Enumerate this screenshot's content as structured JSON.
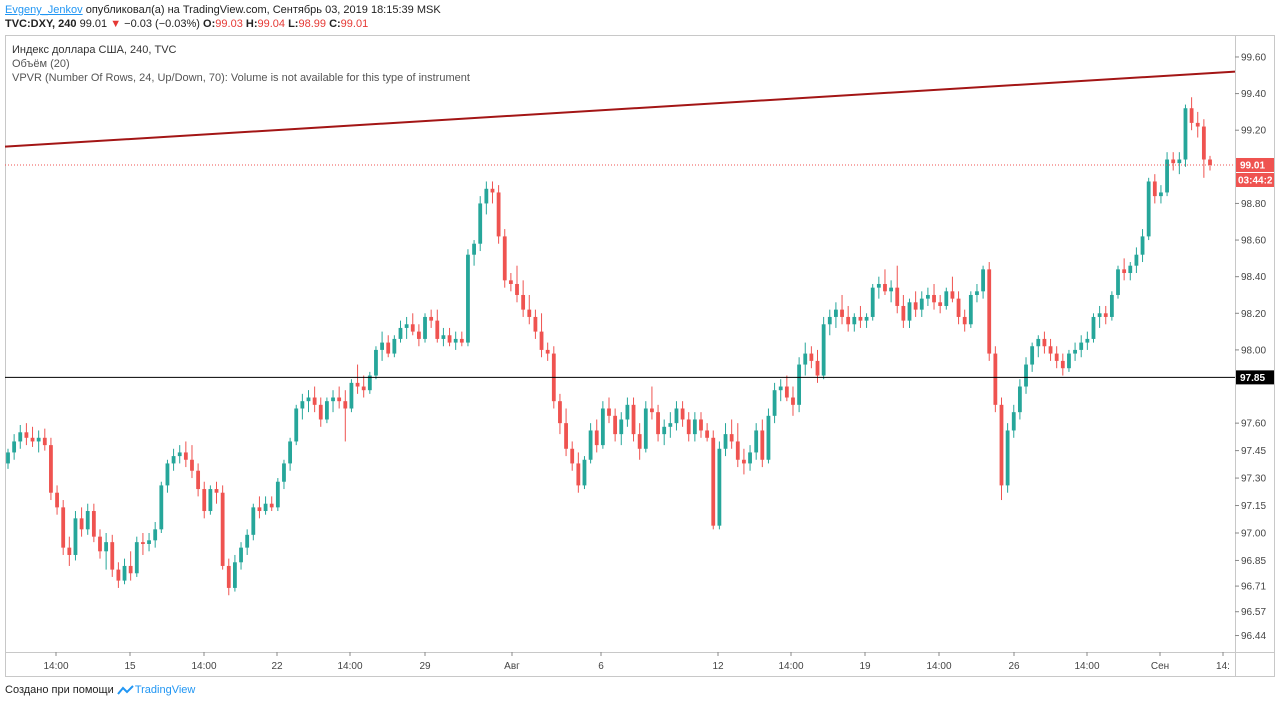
{
  "header": {
    "author": "Evgeny_Jenkov",
    "published_text": "опубликовал(a) на TradingView.com, Сентябрь 03, 2019 18:15:39 MSK",
    "symbol": "TVC:DXY, 240",
    "last": "99.01",
    "change_arrow": "▼",
    "change": "−0.03 (−0.03%)",
    "o_label": "O:",
    "o": "99.03",
    "h_label": "H:",
    "h": "99.04",
    "l_label": "L:",
    "l": "98.99",
    "c_label": "C:",
    "c": "99.01"
  },
  "legend": {
    "title": "Индекс доллара США, 240, TVC",
    "volume": "Объём (20)",
    "vpvr": "VPVR (Number Of Rows, 24, Up/Down, 70): Volume is not available for this type of instrument"
  },
  "footer": {
    "created_with": "Создано при помощи",
    "brand": "TradingView"
  },
  "colors": {
    "up": "#26a69a",
    "down": "#ef5350",
    "trendline": "#a31515",
    "hline": "#000000",
    "price_badge": "#ef5350",
    "hline_badge": "#000000"
  },
  "chart_data": {
    "type": "candlestick",
    "title": "Индекс доллара США, 240, TVC",
    "ylim": [
      96.35,
      99.72
    ],
    "y_ticks": [
      "99.60",
      "99.40",
      "99.20",
      "99.01",
      "98.80",
      "98.60",
      "98.40",
      "98.20",
      "98.00",
      "97.85",
      "97.60",
      "97.45",
      "97.30",
      "97.15",
      "97.00",
      "96.85",
      "96.71",
      "96.57",
      "96.44"
    ],
    "x_ticks": [
      "14:00",
      "15",
      "14:00",
      "22",
      "14:00",
      "29",
      "Авг",
      "6",
      "12",
      "14:00",
      "19",
      "14:00",
      "26",
      "14:00",
      "Сен",
      "14:"
    ],
    "last_price": "99.01",
    "countdown": "03:44:2",
    "horizontal_line": {
      "price": 97.85,
      "label": "97.85"
    },
    "trendline": {
      "from_price": 99.11,
      "to_price": 99.52
    },
    "ohlc": [
      [
        97.38,
        97.46,
        97.35,
        97.44
      ],
      [
        97.44,
        97.54,
        97.4,
        97.5
      ],
      [
        97.5,
        97.59,
        97.46,
        97.55
      ],
      [
        97.55,
        97.6,
        97.48,
        97.52
      ],
      [
        97.52,
        97.58,
        97.47,
        97.5
      ],
      [
        97.5,
        97.56,
        97.44,
        97.52
      ],
      [
        97.52,
        97.57,
        97.45,
        97.48
      ],
      [
        97.48,
        97.52,
        97.18,
        97.22
      ],
      [
        97.22,
        97.26,
        97.1,
        97.14
      ],
      [
        97.14,
        97.18,
        96.88,
        96.92
      ],
      [
        96.92,
        96.98,
        96.82,
        96.88
      ],
      [
        96.88,
        97.12,
        96.85,
        97.08
      ],
      [
        97.08,
        97.14,
        96.98,
        97.02
      ],
      [
        97.02,
        97.16,
        96.99,
        97.12
      ],
      [
        97.12,
        97.16,
        96.95,
        96.98
      ],
      [
        96.98,
        97.02,
        96.86,
        96.9
      ],
      [
        96.9,
        97.0,
        96.8,
        96.95
      ],
      [
        96.95,
        96.99,
        96.76,
        96.8
      ],
      [
        96.8,
        96.84,
        96.7,
        96.74
      ],
      [
        96.74,
        96.86,
        96.72,
        96.82
      ],
      [
        96.82,
        96.9,
        96.74,
        96.78
      ],
      [
        96.78,
        96.98,
        96.76,
        96.95
      ],
      [
        96.95,
        97.0,
        96.88,
        96.94
      ],
      [
        96.94,
        97.0,
        96.9,
        96.96
      ],
      [
        96.96,
        97.06,
        96.92,
        97.02
      ],
      [
        97.02,
        97.28,
        97.0,
        97.26
      ],
      [
        97.26,
        97.4,
        97.22,
        97.38
      ],
      [
        97.38,
        97.46,
        97.34,
        97.42
      ],
      [
        97.42,
        97.48,
        97.38,
        97.44
      ],
      [
        97.44,
        97.5,
        97.36,
        97.4
      ],
      [
        97.4,
        97.48,
        97.3,
        97.34
      ],
      [
        97.34,
        97.38,
        97.2,
        97.24
      ],
      [
        97.24,
        97.28,
        97.08,
        97.12
      ],
      [
        97.12,
        97.26,
        97.1,
        97.24
      ],
      [
        97.24,
        97.28,
        97.16,
        97.22
      ],
      [
        97.22,
        97.26,
        96.8,
        96.82
      ],
      [
        96.82,
        96.86,
        96.66,
        96.7
      ],
      [
        96.7,
        96.88,
        96.68,
        96.84
      ],
      [
        96.84,
        96.95,
        96.8,
        96.92
      ],
      [
        96.92,
        97.02,
        96.88,
        96.99
      ],
      [
        96.99,
        97.16,
        96.96,
        97.14
      ],
      [
        97.14,
        97.2,
        97.08,
        97.12
      ],
      [
        97.12,
        97.2,
        97.1,
        97.16
      ],
      [
        97.16,
        97.2,
        97.12,
        97.14
      ],
      [
        97.14,
        97.3,
        97.12,
        97.28
      ],
      [
        97.28,
        97.4,
        97.24,
        97.38
      ],
      [
        97.38,
        97.52,
        97.34,
        97.5
      ],
      [
        97.5,
        97.7,
        97.48,
        97.68
      ],
      [
        97.68,
        97.76,
        97.62,
        97.72
      ],
      [
        97.72,
        97.78,
        97.66,
        97.74
      ],
      [
        97.74,
        97.8,
        97.66,
        97.7
      ],
      [
        97.7,
        97.74,
        97.58,
        97.62
      ],
      [
        97.62,
        97.74,
        97.6,
        97.72
      ],
      [
        97.72,
        97.78,
        97.66,
        97.74
      ],
      [
        97.74,
        97.8,
        97.68,
        97.72
      ],
      [
        97.72,
        97.78,
        97.5,
        97.68
      ],
      [
        97.68,
        97.84,
        97.66,
        97.82
      ],
      [
        97.82,
        97.92,
        97.76,
        97.8
      ],
      [
        97.8,
        97.86,
        97.74,
        97.78
      ],
      [
        97.78,
        97.88,
        97.76,
        97.86
      ],
      [
        97.86,
        98.02,
        97.84,
        98.0
      ],
      [
        98.0,
        98.1,
        97.94,
        98.04
      ],
      [
        98.04,
        98.08,
        97.96,
        97.98
      ],
      [
        97.98,
        98.08,
        97.96,
        98.06
      ],
      [
        98.06,
        98.16,
        98.04,
        98.12
      ],
      [
        98.12,
        98.18,
        98.06,
        98.14
      ],
      [
        98.14,
        98.2,
        98.08,
        98.1
      ],
      [
        98.1,
        98.14,
        98.02,
        98.06
      ],
      [
        98.06,
        98.2,
        98.04,
        98.18
      ],
      [
        98.18,
        98.22,
        98.12,
        98.16
      ],
      [
        98.16,
        98.22,
        98.04,
        98.06
      ],
      [
        98.06,
        98.12,
        98.02,
        98.08
      ],
      [
        98.08,
        98.12,
        98.02,
        98.04
      ],
      [
        98.04,
        98.1,
        98.0,
        98.06
      ],
      [
        98.06,
        98.1,
        98.02,
        98.04
      ],
      [
        98.04,
        98.55,
        98.02,
        98.52
      ],
      [
        98.52,
        98.6,
        98.46,
        98.58
      ],
      [
        98.58,
        98.84,
        98.54,
        98.8
      ],
      [
        98.8,
        98.92,
        98.74,
        98.88
      ],
      [
        98.88,
        98.92,
        98.8,
        98.86
      ],
      [
        98.86,
        98.9,
        98.58,
        98.62
      ],
      [
        98.62,
        98.66,
        98.34,
        98.38
      ],
      [
        98.38,
        98.42,
        98.32,
        98.36
      ],
      [
        98.36,
        98.46,
        98.26,
        98.3
      ],
      [
        98.3,
        98.38,
        98.18,
        98.22
      ],
      [
        98.22,
        98.3,
        98.14,
        98.18
      ],
      [
        98.18,
        98.22,
        98.06,
        98.1
      ],
      [
        98.1,
        98.2,
        97.96,
        98.0
      ],
      [
        98.0,
        98.04,
        97.94,
        97.98
      ],
      [
        97.98,
        98.02,
        97.68,
        97.72
      ],
      [
        97.72,
        97.76,
        97.54,
        97.6
      ],
      [
        97.6,
        97.68,
        97.42,
        97.46
      ],
      [
        97.46,
        97.5,
        97.34,
        97.38
      ],
      [
        97.38,
        97.44,
        97.22,
        97.26
      ],
      [
        97.26,
        97.42,
        97.24,
        97.4
      ],
      [
        97.4,
        97.6,
        97.38,
        97.56
      ],
      [
        97.56,
        97.62,
        97.44,
        97.48
      ],
      [
        97.48,
        97.72,
        97.46,
        97.68
      ],
      [
        97.68,
        97.74,
        97.6,
        97.64
      ],
      [
        97.64,
        97.68,
        97.5,
        97.54
      ],
      [
        97.54,
        97.66,
        97.48,
        97.62
      ],
      [
        97.62,
        97.74,
        97.58,
        97.7
      ],
      [
        97.7,
        97.74,
        97.5,
        97.54
      ],
      [
        97.54,
        97.6,
        97.4,
        97.46
      ],
      [
        97.46,
        97.72,
        97.44,
        97.68
      ],
      [
        97.68,
        97.8,
        97.62,
        97.66
      ],
      [
        97.66,
        97.7,
        97.5,
        97.54
      ],
      [
        97.54,
        97.62,
        97.48,
        97.58
      ],
      [
        97.58,
        97.66,
        97.52,
        97.6
      ],
      [
        97.6,
        97.72,
        97.56,
        97.68
      ],
      [
        97.68,
        97.72,
        97.58,
        97.62
      ],
      [
        97.62,
        97.66,
        97.5,
        97.54
      ],
      [
        97.54,
        97.66,
        97.5,
        97.62
      ],
      [
        97.62,
        97.66,
        97.52,
        97.56
      ],
      [
        97.56,
        97.6,
        97.5,
        97.52
      ],
      [
        97.52,
        97.56,
        97.02,
        97.04
      ],
      [
        97.04,
        97.5,
        97.02,
        97.46
      ],
      [
        97.46,
        97.6,
        97.42,
        97.54
      ],
      [
        97.54,
        97.62,
        97.46,
        97.5
      ],
      [
        97.5,
        97.6,
        97.36,
        97.4
      ],
      [
        97.4,
        97.46,
        97.32,
        97.38
      ],
      [
        97.38,
        97.48,
        97.34,
        97.44
      ],
      [
        97.44,
        97.6,
        97.4,
        97.56
      ],
      [
        97.56,
        97.62,
        97.36,
        97.4
      ],
      [
        97.4,
        97.68,
        97.38,
        97.64
      ],
      [
        97.64,
        97.82,
        97.6,
        97.78
      ],
      [
        97.78,
        97.84,
        97.72,
        97.8
      ],
      [
        97.8,
        97.86,
        97.72,
        97.74
      ],
      [
        97.74,
        97.8,
        97.64,
        97.7
      ],
      [
        97.7,
        97.96,
        97.66,
        97.92
      ],
      [
        97.92,
        98.04,
        97.86,
        97.98
      ],
      [
        97.98,
        98.02,
        97.9,
        97.94
      ],
      [
        97.94,
        98.0,
        97.82,
        97.86
      ],
      [
        97.86,
        98.18,
        97.84,
        98.14
      ],
      [
        98.14,
        98.22,
        98.08,
        98.18
      ],
      [
        98.18,
        98.26,
        98.12,
        98.22
      ],
      [
        98.22,
        98.3,
        98.14,
        98.18
      ],
      [
        98.18,
        98.24,
        98.1,
        98.14
      ],
      [
        98.14,
        98.2,
        98.1,
        98.18
      ],
      [
        98.18,
        98.24,
        98.12,
        98.16
      ],
      [
        98.16,
        98.2,
        98.12,
        98.18
      ],
      [
        98.18,
        98.36,
        98.16,
        98.34
      ],
      [
        98.34,
        98.4,
        98.28,
        98.36
      ],
      [
        98.36,
        98.44,
        98.3,
        98.32
      ],
      [
        98.32,
        98.38,
        98.26,
        98.34
      ],
      [
        98.34,
        98.46,
        98.2,
        98.24
      ],
      [
        98.24,
        98.3,
        98.12,
        98.16
      ],
      [
        98.16,
        98.28,
        98.12,
        98.26
      ],
      [
        98.26,
        98.32,
        98.18,
        98.22
      ],
      [
        98.22,
        98.32,
        98.18,
        98.28
      ],
      [
        98.28,
        98.34,
        98.24,
        98.3
      ],
      [
        98.3,
        98.36,
        98.22,
        98.26
      ],
      [
        98.26,
        98.3,
        98.2,
        98.24
      ],
      [
        98.24,
        98.34,
        98.22,
        98.32
      ],
      [
        98.32,
        98.4,
        98.26,
        98.28
      ],
      [
        98.28,
        98.32,
        98.14,
        98.18
      ],
      [
        98.18,
        98.22,
        98.1,
        98.14
      ],
      [
        98.14,
        98.32,
        98.12,
        98.3
      ],
      [
        98.3,
        98.36,
        98.26,
        98.32
      ],
      [
        98.32,
        98.46,
        98.28,
        98.44
      ],
      [
        98.44,
        98.48,
        97.94,
        97.98
      ],
      [
        97.98,
        98.02,
        97.66,
        97.7
      ],
      [
        97.7,
        97.74,
        97.18,
        97.26
      ],
      [
        97.26,
        97.6,
        97.22,
        97.56
      ],
      [
        97.56,
        97.7,
        97.52,
        97.66
      ],
      [
        97.66,
        97.84,
        97.62,
        97.8
      ],
      [
        97.8,
        97.96,
        97.76,
        97.92
      ],
      [
        97.92,
        98.04,
        97.88,
        98.02
      ],
      [
        98.02,
        98.08,
        97.96,
        98.06
      ],
      [
        98.06,
        98.1,
        97.98,
        98.02
      ],
      [
        98.02,
        98.06,
        97.94,
        97.98
      ],
      [
        97.98,
        98.02,
        97.9,
        97.94
      ],
      [
        97.94,
        97.98,
        97.86,
        97.9
      ],
      [
        97.9,
        98.0,
        97.88,
        97.98
      ],
      [
        97.98,
        98.04,
        97.94,
        98.0
      ],
      [
        98.0,
        98.08,
        97.96,
        98.04
      ],
      [
        98.04,
        98.1,
        98.0,
        98.06
      ],
      [
        98.06,
        98.2,
        98.04,
        98.18
      ],
      [
        98.18,
        98.24,
        98.12,
        98.2
      ],
      [
        98.2,
        98.24,
        98.14,
        98.18
      ],
      [
        98.18,
        98.32,
        98.16,
        98.3
      ],
      [
        98.3,
        98.46,
        98.28,
        98.44
      ],
      [
        98.44,
        98.5,
        98.38,
        98.42
      ],
      [
        98.42,
        98.48,
        98.38,
        98.46
      ],
      [
        98.46,
        98.56,
        98.42,
        98.52
      ],
      [
        98.52,
        98.66,
        98.48,
        98.62
      ],
      [
        98.62,
        98.94,
        98.6,
        98.92
      ],
      [
        98.92,
        98.96,
        98.8,
        98.84
      ],
      [
        98.84,
        98.9,
        98.8,
        98.86
      ],
      [
        98.86,
        99.08,
        98.84,
        99.04
      ],
      [
        99.04,
        99.08,
        98.98,
        99.02
      ],
      [
        99.02,
        99.08,
        98.96,
        99.04
      ],
      [
        99.04,
        99.34,
        99.0,
        99.32
      ],
      [
        99.32,
        99.38,
        99.2,
        99.24
      ],
      [
        99.24,
        99.3,
        99.16,
        99.22
      ],
      [
        99.22,
        99.26,
        98.94,
        99.04
      ],
      [
        99.04,
        99.06,
        98.98,
        99.01
      ]
    ]
  }
}
